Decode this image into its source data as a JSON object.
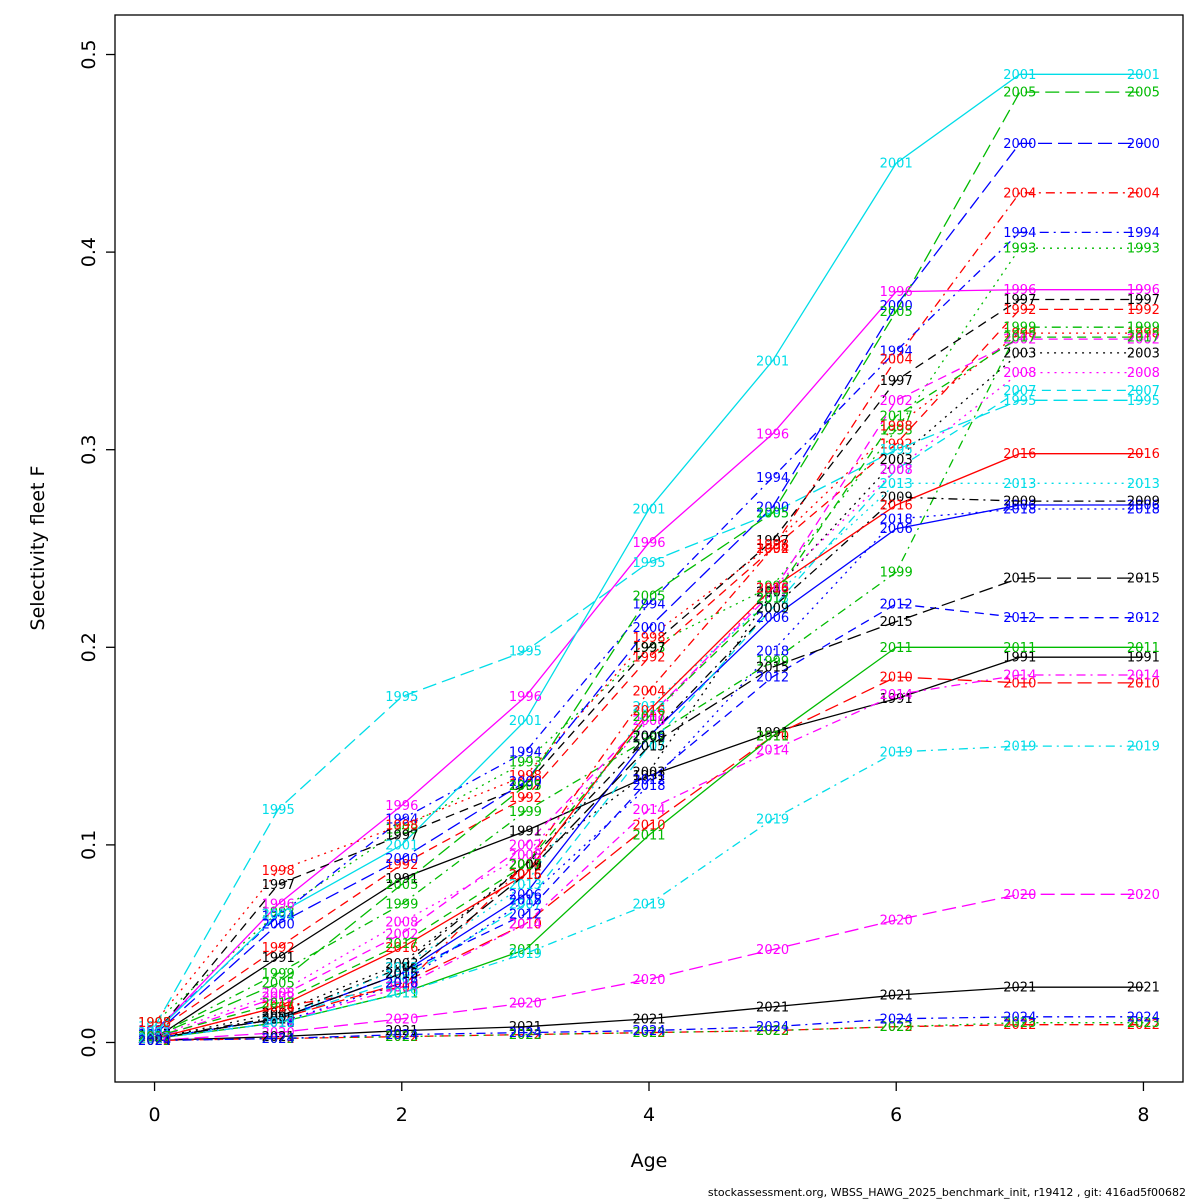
{
  "caption": {
    "text": "stockassessment.org, WBSS_HAWG_2025_benchmark_init, r19412 , git: 416ad5f00682"
  },
  "chart_data": {
    "type": "line",
    "title": "",
    "xlabel": "Age",
    "ylabel": "Selectivity fleet F",
    "x": [
      0,
      1,
      2,
      3,
      4,
      5,
      6,
      7,
      8
    ],
    "xlim": [
      0,
      8
    ],
    "ylim": [
      0,
      0.5
    ],
    "x_ticks": [
      0,
      2,
      4,
      6,
      8
    ],
    "y_ticks": [
      0.0,
      0.1,
      0.2,
      0.3,
      0.4,
      0.5
    ],
    "grid": false,
    "legend": "year-labels-at-points",
    "palette": {
      "black": "#000000",
      "red": "#FF0000",
      "green": "#00BB00",
      "blue": "#0000FF",
      "cyan": "#00DDE8",
      "magenta": "#FF00FF"
    },
    "series": [
      {
        "name": "1991",
        "color": "#000000",
        "lty": "solid",
        "values": [
          0.002,
          0.043,
          0.083,
          0.107,
          0.135,
          0.157,
          0.174,
          0.195,
          0.195
        ]
      },
      {
        "name": "1992",
        "color": "#FF0000",
        "lty": "dashed",
        "values": [
          0.005,
          0.048,
          0.09,
          0.124,
          0.195,
          0.25,
          0.303,
          0.371,
          0.371
        ]
      },
      {
        "name": "1993",
        "color": "#00BB00",
        "lty": "dotted",
        "values": [
          0.01,
          0.066,
          0.108,
          0.142,
          0.2,
          0.231,
          0.31,
          0.402,
          0.402
        ]
      },
      {
        "name": "1994",
        "color": "#0000FF",
        "lty": "dotdash",
        "values": [
          0.006,
          0.064,
          0.113,
          0.147,
          0.222,
          0.286,
          0.35,
          0.41,
          0.41
        ]
      },
      {
        "name": "1995",
        "color": "#00DDE8",
        "lty": "longdash",
        "values": [
          0.008,
          0.118,
          0.175,
          0.198,
          0.243,
          0.268,
          0.3,
          0.325,
          0.325
        ]
      },
      {
        "name": "1996",
        "color": "#FF00FF",
        "lty": "solid",
        "values": [
          0.005,
          0.07,
          0.12,
          0.175,
          0.253,
          0.308,
          0.38,
          0.381,
          0.381
        ]
      },
      {
        "name": "1997",
        "color": "#000000",
        "lty": "dashed",
        "values": [
          0.004,
          0.08,
          0.105,
          0.13,
          0.2,
          0.254,
          0.335,
          0.376,
          0.376
        ]
      },
      {
        "name": "1998",
        "color": "#FF0000",
        "lty": "dotted",
        "values": [
          0.01,
          0.087,
          0.11,
          0.135,
          0.205,
          0.252,
          0.312,
          0.359,
          0.359
        ]
      },
      {
        "name": "1999",
        "color": "#00BB00",
        "lty": "dotdash",
        "values": [
          0.003,
          0.035,
          0.07,
          0.117,
          0.154,
          0.193,
          0.238,
          0.362,
          0.362
        ]
      },
      {
        "name": "2000",
        "color": "#0000FF",
        "lty": "longdash",
        "values": [
          0.004,
          0.06,
          0.093,
          0.132,
          0.21,
          0.271,
          0.373,
          0.455,
          0.455
        ]
      },
      {
        "name": "2001",
        "color": "#00DDE8",
        "lty": "solid",
        "values": [
          0.005,
          0.065,
          0.1,
          0.163,
          0.27,
          0.345,
          0.445,
          0.49,
          0.49
        ]
      },
      {
        "name": "2002",
        "color": "#FF00FF",
        "lty": "dashed",
        "values": [
          0.002,
          0.023,
          0.055,
          0.1,
          0.165,
          0.228,
          0.325,
          0.356,
          0.356
        ]
      },
      {
        "name": "2003",
        "color": "#000000",
        "lty": "dotted",
        "values": [
          0.002,
          0.015,
          0.04,
          0.09,
          0.137,
          0.228,
          0.295,
          0.349,
          0.349
        ]
      },
      {
        "name": "2004",
        "color": "#FF0000",
        "lty": "dotdash",
        "values": [
          0.002,
          0.018,
          0.028,
          0.09,
          0.178,
          0.25,
          0.346,
          0.43,
          0.43
        ]
      },
      {
        "name": "2005",
        "color": "#00BB00",
        "lty": "longdash",
        "values": [
          0.003,
          0.03,
          0.08,
          0.13,
          0.226,
          0.268,
          0.37,
          0.481,
          0.481
        ]
      },
      {
        "name": "2006",
        "color": "#0000FF",
        "lty": "solid",
        "values": [
          0.002,
          0.012,
          0.035,
          0.075,
          0.155,
          0.215,
          0.26,
          0.272,
          0.272
        ]
      },
      {
        "name": "2007",
        "color": "#00DDE8",
        "lty": "dashed",
        "values": [
          0.002,
          0.012,
          0.032,
          0.07,
          0.15,
          0.22,
          0.29,
          0.33,
          0.33
        ]
      },
      {
        "name": "2008",
        "color": "#FF00FF",
        "lty": "dotted",
        "values": [
          0.003,
          0.025,
          0.061,
          0.095,
          0.163,
          0.23,
          0.29,
          0.339,
          0.339
        ]
      },
      {
        "name": "2009",
        "color": "#000000",
        "lty": "dotdash",
        "values": [
          0.002,
          0.013,
          0.038,
          0.09,
          0.155,
          0.22,
          0.276,
          0.274,
          0.274
        ]
      },
      {
        "name": "2010",
        "color": "#FF0000",
        "lty": "longdash",
        "values": [
          0.002,
          0.012,
          0.03,
          0.06,
          0.11,
          0.155,
          0.185,
          0.182,
          0.182
        ]
      },
      {
        "name": "2011",
        "color": "#00BB00",
        "lty": "solid",
        "values": [
          0.002,
          0.01,
          0.025,
          0.047,
          0.105,
          0.155,
          0.2,
          0.2,
          0.2
        ]
      },
      {
        "name": "2012",
        "color": "#0000FF",
        "lty": "dashed",
        "values": [
          0.002,
          0.012,
          0.035,
          0.065,
          0.133,
          0.185,
          0.222,
          0.215,
          0.215
        ]
      },
      {
        "name": "2013",
        "color": "#00DDE8",
        "lty": "dotted",
        "values": [
          0.002,
          0.012,
          0.038,
          0.08,
          0.17,
          0.225,
          0.283,
          0.283,
          0.283
        ]
      },
      {
        "name": "2014",
        "color": "#FF00FF",
        "lty": "dotdash",
        "values": [
          0.002,
          0.01,
          0.028,
          0.06,
          0.118,
          0.148,
          0.176,
          0.186,
          0.186
        ]
      },
      {
        "name": "2015",
        "color": "#000000",
        "lty": "longdash",
        "values": [
          0.002,
          0.012,
          0.035,
          0.085,
          0.15,
          0.19,
          0.213,
          0.235,
          0.235
        ]
      },
      {
        "name": "2016",
        "color": "#FF0000",
        "lty": "solid",
        "values": [
          0.002,
          0.018,
          0.048,
          0.085,
          0.168,
          0.23,
          0.272,
          0.298,
          0.298
        ]
      },
      {
        "name": "2017",
        "color": "#00BB00",
        "lty": "dashed",
        "values": [
          0.003,
          0.02,
          0.05,
          0.09,
          0.165,
          0.225,
          0.317,
          0.357,
          0.357
        ]
      },
      {
        "name": "2018",
        "color": "#0000FF",
        "lty": "dotted",
        "values": [
          0.002,
          0.01,
          0.03,
          0.072,
          0.13,
          0.198,
          0.265,
          0.27,
          0.27
        ]
      },
      {
        "name": "2019",
        "color": "#00DDE8",
        "lty": "dotdash",
        "values": [
          0.002,
          0.01,
          0.025,
          0.045,
          0.07,
          0.113,
          0.147,
          0.15,
          0.15
        ]
      },
      {
        "name": "2020",
        "color": "#FF00FF",
        "lty": "longdash",
        "values": [
          0.001,
          0.005,
          0.012,
          0.02,
          0.032,
          0.047,
          0.062,
          0.075,
          0.075
        ]
      },
      {
        "name": "2021",
        "color": "#000000",
        "lty": "solid",
        "values": [
          0.001,
          0.003,
          0.006,
          0.008,
          0.012,
          0.018,
          0.024,
          0.028,
          0.028
        ]
      },
      {
        "name": "2022",
        "color": "#FF0000",
        "lty": "dashed",
        "values": [
          0.001,
          0.002,
          0.003,
          0.004,
          0.005,
          0.006,
          0.008,
          0.009,
          0.009
        ]
      },
      {
        "name": "2023",
        "color": "#00BB00",
        "lty": "dotted",
        "values": [
          0.001,
          0.002,
          0.003,
          0.004,
          0.005,
          0.006,
          0.008,
          0.01,
          0.01
        ]
      },
      {
        "name": "2024",
        "color": "#0000FF",
        "lty": "dotdash",
        "values": [
          0.001,
          0.002,
          0.004,
          0.005,
          0.006,
          0.008,
          0.012,
          0.013,
          0.013
        ]
      }
    ]
  }
}
